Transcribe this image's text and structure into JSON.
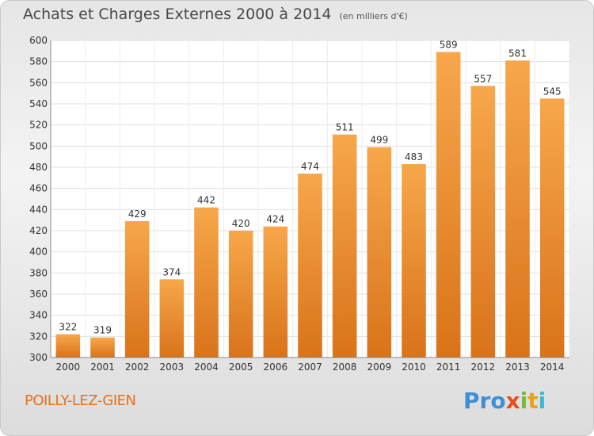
{
  "chart_data": {
    "type": "bar",
    "title": "Achats et Charges Externes 2000 à 2014",
    "subtitle": "(en milliers d'€)",
    "categories": [
      "2000",
      "2001",
      "2002",
      "2003",
      "2004",
      "2005",
      "2006",
      "2007",
      "2008",
      "2009",
      "2010",
      "2011",
      "2012",
      "2013",
      "2014"
    ],
    "values": [
      322,
      319,
      429,
      374,
      442,
      420,
      424,
      474,
      511,
      499,
      483,
      589,
      557,
      581,
      545
    ],
    "ylim": [
      300,
      600
    ],
    "yticks": [
      300,
      320,
      340,
      360,
      380,
      400,
      420,
      440,
      460,
      480,
      500,
      520,
      540,
      560,
      580,
      600
    ],
    "grid": true,
    "bar_color": "#f0922e"
  },
  "footer": {
    "commune": "POILLY-LEZ-GIEN",
    "logo_parts": [
      "Pro",
      "x",
      "i",
      "t",
      "i"
    ]
  }
}
